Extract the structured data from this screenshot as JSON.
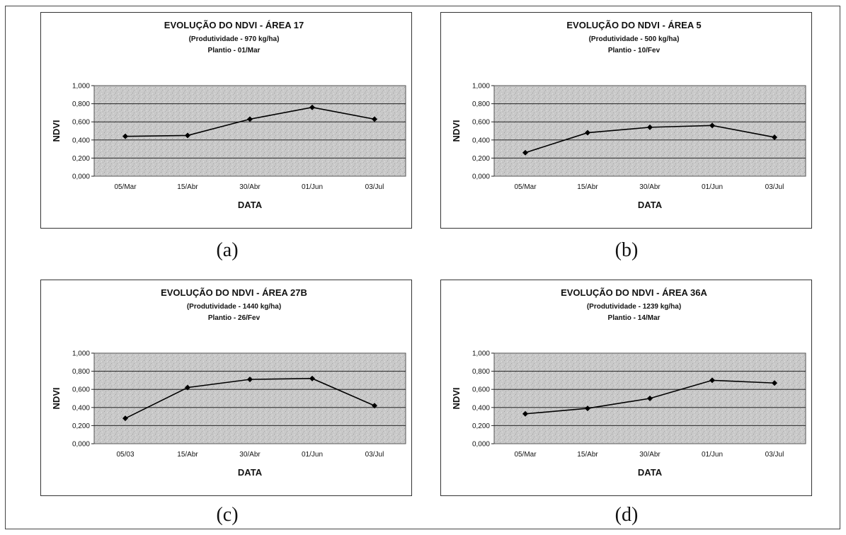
{
  "figure": {
    "captions": [
      "(a)",
      "(b)",
      "(c)",
      "(d)"
    ]
  },
  "chart_data": [
    {
      "type": "line",
      "title": "EVOLUÇÃO DO NDVI - ÁREA 17",
      "subtitle": "(Produtividade - 970 kg/ha)",
      "subtitle2": "Plantio - 01/Mar",
      "xlabel": "DATA",
      "ylabel": "NDVI",
      "categories": [
        "05/Mar",
        "15/Abr",
        "30/Abr",
        "01/Jun",
        "03/Jul"
      ],
      "values": [
        0.44,
        0.45,
        0.63,
        0.76,
        0.63
      ],
      "ylim": [
        0,
        1
      ],
      "yticks": [
        "0,000",
        "0,200",
        "0,400",
        "0,600",
        "0,800",
        "1,000"
      ],
      "grid": true,
      "legend": "none"
    },
    {
      "type": "line",
      "title": "EVOLUÇÃO DO NDVI - ÁREA 5",
      "subtitle": "(Produtividade - 500 kg/ha)",
      "subtitle2": "Plantio - 10/Fev",
      "xlabel": "DATA",
      "ylabel": "NDVI",
      "categories": [
        "05/Mar",
        "15/Abr",
        "30/Abr",
        "01/Jun",
        "03/Jul"
      ],
      "values": [
        0.26,
        0.48,
        0.54,
        0.56,
        0.43
      ],
      "ylim": [
        0,
        1
      ],
      "yticks": [
        "0,000",
        "0,200",
        "0,400",
        "0,600",
        "0,800",
        "1,000"
      ],
      "grid": true,
      "legend": "none"
    },
    {
      "type": "line",
      "title": "EVOLUÇÃO DO NDVI - ÁREA 27B",
      "subtitle": "(Produtividade - 1440 kg/ha)",
      "subtitle2": "Plantio - 26/Fev",
      "xlabel": "DATA",
      "ylabel": "NDVI",
      "categories": [
        "05/03",
        "15/Abr",
        "30/Abr",
        "01/Jun",
        "03/Jul"
      ],
      "values": [
        0.28,
        0.62,
        0.71,
        0.72,
        0.42
      ],
      "ylim": [
        0,
        1
      ],
      "yticks": [
        "0,000",
        "0,200",
        "0,400",
        "0,600",
        "0,800",
        "1,000"
      ],
      "grid": true,
      "legend": "none"
    },
    {
      "type": "line",
      "title": "EVOLUÇÃO DO NDVI -  ÁREA 36A",
      "subtitle": "(Produtividade - 1239 kg/ha)",
      "subtitle2": "Plantio - 14/Mar",
      "xlabel": "DATA",
      "ylabel": "NDVI",
      "categories": [
        "05/Mar",
        "15/Abr",
        "30/Abr",
        "01/Jun",
        "03/Jul"
      ],
      "values": [
        0.33,
        0.39,
        0.5,
        0.7,
        0.67
      ],
      "ylim": [
        0,
        1
      ],
      "yticks": [
        "0,000",
        "0,200",
        "0,400",
        "0,600",
        "0,800",
        "1,000"
      ],
      "grid": true,
      "legend": "none"
    }
  ]
}
